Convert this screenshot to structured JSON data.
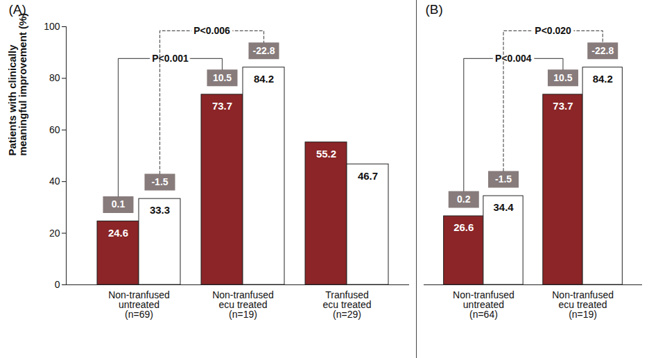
{
  "chart_data": [
    {
      "type": "bar",
      "title": "(A)",
      "ylabel": "Patients with clinically\nmeaningful improvement (%)",
      "categories": [
        "Non-tranfused\nuntreated\n(n=69)",
        "Non-tranfused\necu treated\n(n=19)",
        "Tranfused\necu treated\n(n=29)"
      ],
      "series": [
        {
          "color": "#8b2527",
          "values": [
            24.6,
            73.7,
            55.2
          ],
          "changes": [
            0.1,
            10.5,
            null
          ]
        },
        {
          "color": "#ffffff",
          "values": [
            33.3,
            84.2,
            46.7
          ],
          "changes": [
            -1.5,
            -22.8,
            null
          ]
        }
      ],
      "comparisons": [
        {
          "label": "P<0.001",
          "series": 0,
          "between": [
            0,
            1
          ],
          "line_style": "solid"
        },
        {
          "label": "P<0.006",
          "series": 1,
          "between": [
            0,
            1
          ],
          "line_style": "dashed"
        }
      ],
      "ylim": [
        0,
        100
      ],
      "yticks": [
        0,
        20,
        40,
        60,
        80,
        100
      ],
      "data_labels": true
    },
    {
      "type": "bar",
      "title": "(B)",
      "categories": [
        "Non-tranfused\nuntreated\n(n=64)",
        "Non-tranfused\necu treated\n(n=19)"
      ],
      "series": [
        {
          "color": "#8b2527",
          "values": [
            26.6,
            73.7
          ],
          "changes": [
            0.2,
            10.5
          ]
        },
        {
          "color": "#ffffff",
          "values": [
            34.4,
            84.2
          ],
          "changes": [
            -1.5,
            -22.8
          ]
        }
      ],
      "comparisons": [
        {
          "label": "P<0.004",
          "series": 0,
          "between": [
            0,
            1
          ],
          "line_style": "solid"
        },
        {
          "label": "P<0.020",
          "series": 1,
          "between": [
            0,
            1
          ],
          "line_style": "dashed"
        }
      ],
      "ylim": [
        0,
        100
      ],
      "tick_labels": "x",
      "data_labels": true
    }
  ]
}
